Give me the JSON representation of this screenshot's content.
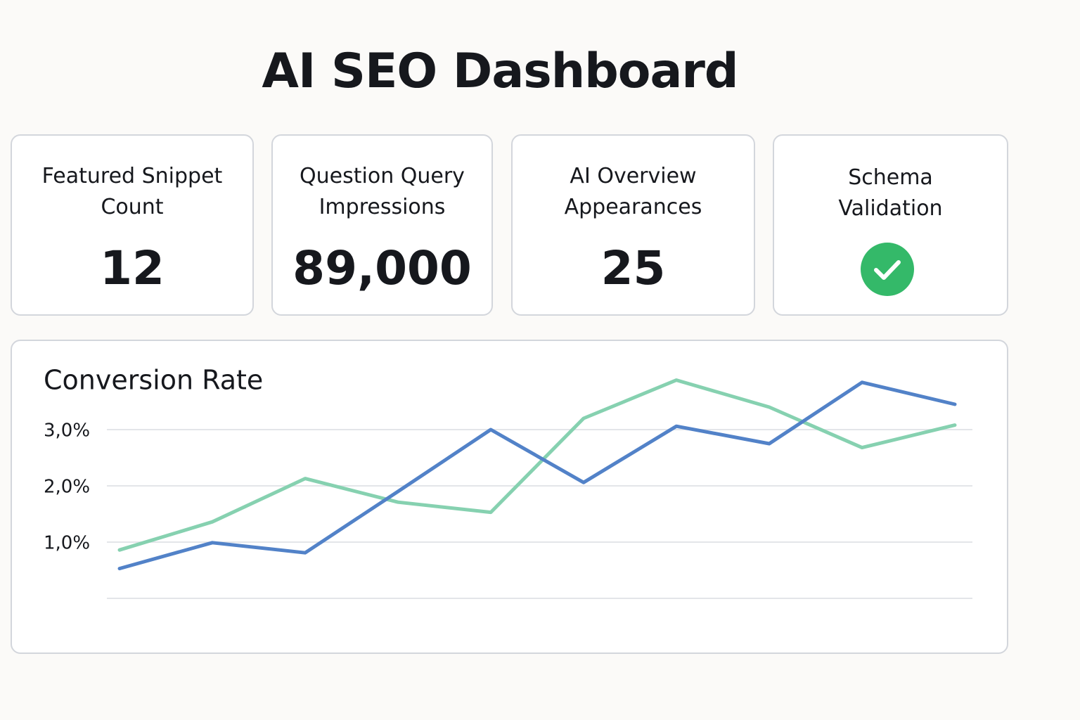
{
  "header": {
    "title": "AI SEO Dashboard"
  },
  "cards": [
    {
      "label": [
        "Featured Snippet",
        "Count"
      ],
      "value": "12"
    },
    {
      "label": [
        "Question Query",
        "Impressions"
      ],
      "value": "89,000"
    },
    {
      "label": [
        "AI Overview",
        "Appearances"
      ],
      "value": "25"
    },
    {
      "label": [
        "Schema",
        "Validation"
      ]
    }
  ],
  "chart_data": {
    "type": "line",
    "title": "Conversion Rate",
    "categories": [
      null,
      null,
      null,
      null,
      null,
      null,
      null,
      null,
      null,
      null
    ],
    "series": [
      {
        "color": "#86d1b0",
        "values": [
          0.86,
          1.36,
          2.13,
          1.71,
          1.53,
          3.2,
          3.88,
          3.4,
          2.68,
          3.08
        ]
      },
      {
        "color": "#5282c8",
        "values": [
          0.53,
          0.99,
          0.81,
          1.9,
          3.0,
          2.06,
          3.06,
          2.75,
          3.84,
          3.45
        ]
      }
    ],
    "ylim": [
      0,
      4
    ],
    "yticks": [
      {
        "value": 1,
        "label": "1,0%"
      },
      {
        "value": 2,
        "label": "2,0%"
      },
      {
        "value": 3,
        "label": "3,0%"
      }
    ],
    "grid": true
  }
}
